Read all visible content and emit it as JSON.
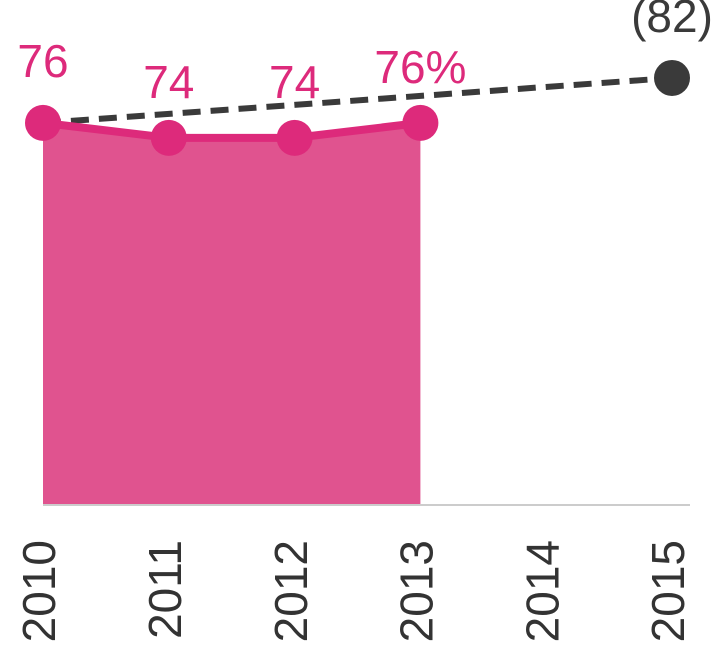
{
  "chart_data": {
    "type": "line",
    "x": [
      2010,
      2011,
      2012,
      2013,
      2014,
      2015
    ],
    "xticks": [
      2010,
      2011,
      2012,
      2013,
      2014,
      2015
    ],
    "xlim": [
      2010,
      2015
    ],
    "ylim": [
      25,
      90
    ],
    "series": [
      {
        "color": "#dd2a7b",
        "area_color": "#e0538f",
        "area": true,
        "dashed": false,
        "x": [
          2010,
          2011,
          2012,
          2013
        ],
        "values": [
          76,
          74,
          74,
          76
        ],
        "value_labels": [
          "76",
          "74",
          "74",
          "76%"
        ]
      },
      {
        "color": "#3a3a3a",
        "area": false,
        "dashed": true,
        "x": [
          2010,
          2015
        ],
        "values": [
          76,
          82
        ],
        "value_labels": [
          null,
          "(82)"
        ]
      }
    ]
  }
}
